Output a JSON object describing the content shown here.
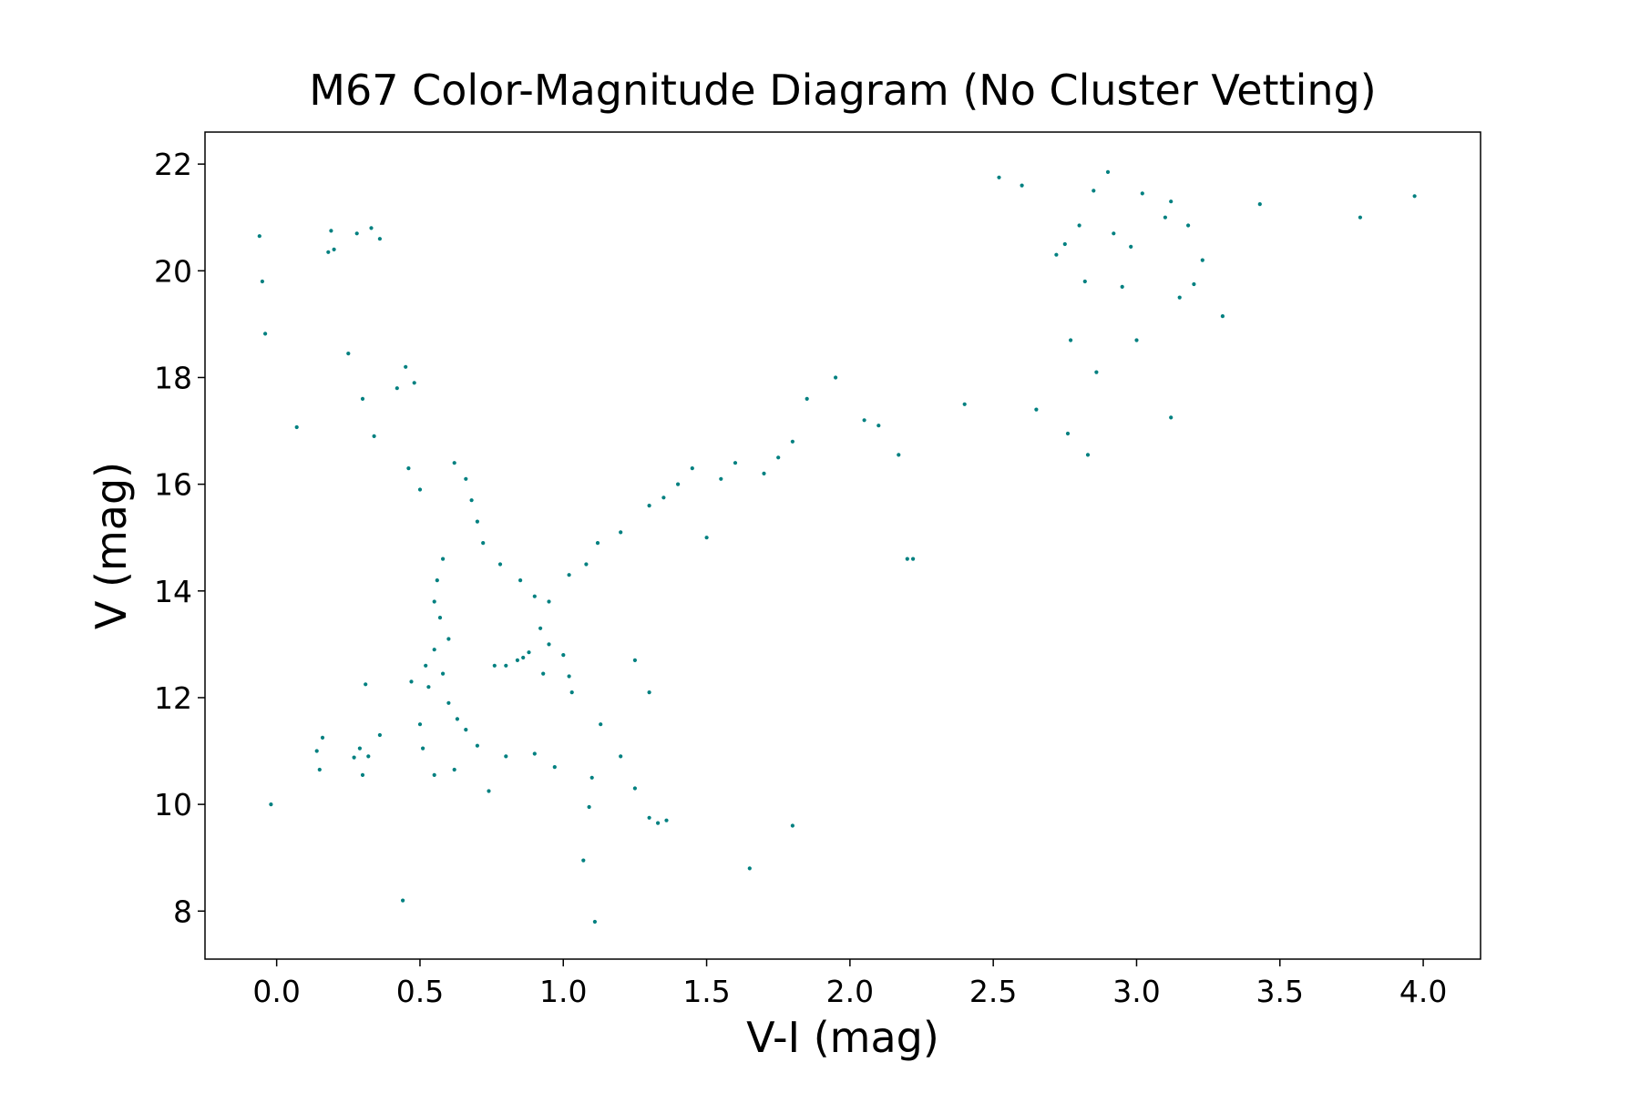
{
  "chart_data": {
    "type": "scatter",
    "title": "M67 Color-Magnitude Diagram (No Cluster Vetting)",
    "xlabel": "V-I (mag)",
    "ylabel": "V (mag)",
    "xlim": [
      -0.25,
      4.2
    ],
    "ylim": [
      7.1,
      22.6
    ],
    "xticks": [
      0.0,
      0.5,
      1.0,
      1.5,
      2.0,
      2.5,
      3.0,
      3.5,
      4.0
    ],
    "xtick_labels": [
      "0.0",
      "0.5",
      "1.0",
      "1.5",
      "2.0",
      "2.5",
      "3.0",
      "3.5",
      "4.0"
    ],
    "yticks": [
      8,
      10,
      12,
      14,
      16,
      18,
      20,
      22
    ],
    "ytick_labels": [
      "8",
      "10",
      "12",
      "14",
      "16",
      "18",
      "20",
      "22"
    ],
    "grid": false,
    "marker_color": "#008080",
    "series": [
      {
        "points": [
          [
            -0.06,
            20.65
          ],
          [
            -0.05,
            19.8
          ],
          [
            -0.04,
            18.82
          ],
          [
            -0.02,
            10.0
          ],
          [
            0.07,
            17.07
          ],
          [
            0.14,
            11.0
          ],
          [
            0.15,
            10.65
          ],
          [
            0.16,
            11.25
          ],
          [
            0.18,
            20.35
          ],
          [
            0.19,
            20.75
          ],
          [
            0.2,
            20.4
          ],
          [
            0.25,
            18.45
          ],
          [
            0.27,
            10.88
          ],
          [
            0.28,
            20.7
          ],
          [
            0.29,
            11.05
          ],
          [
            0.3,
            10.55
          ],
          [
            0.3,
            17.6
          ],
          [
            0.31,
            12.25
          ],
          [
            0.32,
            10.9
          ],
          [
            0.33,
            20.8
          ],
          [
            0.34,
            16.9
          ],
          [
            0.36,
            11.3
          ],
          [
            0.36,
            20.6
          ],
          [
            0.42,
            17.8
          ],
          [
            0.44,
            8.2
          ],
          [
            0.45,
            18.2
          ],
          [
            0.46,
            16.3
          ],
          [
            0.47,
            12.3
          ],
          [
            0.48,
            17.9
          ],
          [
            0.5,
            11.5
          ],
          [
            0.5,
            15.9
          ],
          [
            0.51,
            11.05
          ],
          [
            0.55,
            10.55
          ],
          [
            0.58,
            12.45
          ],
          [
            0.62,
            10.65
          ],
          [
            0.74,
            10.25
          ],
          [
            0.8,
            10.9
          ],
          [
            0.84,
            12.7
          ],
          [
            0.9,
            10.95
          ],
          [
            0.97,
            10.7
          ],
          [
            1.07,
            8.95
          ],
          [
            1.09,
            9.95
          ],
          [
            1.1,
            10.5
          ],
          [
            1.11,
            7.8
          ],
          [
            1.13,
            11.5
          ],
          [
            1.2,
            10.9
          ],
          [
            1.25,
            10.3
          ],
          [
            1.3,
            9.75
          ],
          [
            1.33,
            9.65
          ],
          [
            1.36,
            9.7
          ],
          [
            1.65,
            8.8
          ],
          [
            1.8,
            9.6
          ],
          [
            1.5,
            15.0
          ],
          [
            1.3,
            12.1
          ],
          [
            1.25,
            12.7
          ],
          [
            2.2,
            14.6
          ],
          [
            2.22,
            14.6
          ],
          [
            2.17,
            16.55
          ],
          [
            2.4,
            17.5
          ],
          [
            2.65,
            17.4
          ],
          [
            2.76,
            16.95
          ],
          [
            2.83,
            16.55
          ],
          [
            2.86,
            18.1
          ],
          [
            3.12,
            17.25
          ],
          [
            2.75,
            20.5
          ],
          [
            2.8,
            20.85
          ],
          [
            2.85,
            21.5
          ],
          [
            2.9,
            21.85
          ],
          [
            2.92,
            20.7
          ],
          [
            2.98,
            20.45
          ],
          [
            3.02,
            21.45
          ],
          [
            3.1,
            21.0
          ],
          [
            3.12,
            21.3
          ],
          [
            3.18,
            20.85
          ],
          [
            3.15,
            19.5
          ],
          [
            3.2,
            19.75
          ],
          [
            3.23,
            20.2
          ],
          [
            3.3,
            19.15
          ],
          [
            3.0,
            18.7
          ],
          [
            2.77,
            18.7
          ],
          [
            3.43,
            21.25
          ],
          [
            3.78,
            21.0
          ],
          [
            3.97,
            21.4
          ],
          [
            2.52,
            21.75
          ],
          [
            2.6,
            21.6
          ],
          [
            2.72,
            20.3
          ],
          [
            2.82,
            19.8
          ],
          [
            2.95,
            19.7
          ],
          [
            2.1,
            17.1
          ],
          [
            2.05,
            17.2
          ],
          [
            1.95,
            18.0
          ],
          [
            1.85,
            17.6
          ],
          [
            1.75,
            16.5
          ],
          [
            1.8,
            16.8
          ],
          [
            1.7,
            16.2
          ],
          [
            1.6,
            16.4
          ],
          [
            1.55,
            16.1
          ],
          [
            1.45,
            16.3
          ],
          [
            1.4,
            16.0
          ],
          [
            1.35,
            15.75
          ],
          [
            1.3,
            15.6
          ],
          [
            1.2,
            15.1
          ],
          [
            1.12,
            14.9
          ],
          [
            1.08,
            14.5
          ],
          [
            1.02,
            14.3
          ],
          [
            0.95,
            13.8
          ],
          [
            0.92,
            13.3
          ],
          [
            0.95,
            13.0
          ],
          [
            1.0,
            12.8
          ],
          [
            1.02,
            12.4
          ],
          [
            1.03,
            12.1
          ],
          [
            0.9,
            13.9
          ],
          [
            0.85,
            14.2
          ],
          [
            0.78,
            14.5
          ],
          [
            0.72,
            14.9
          ],
          [
            0.7,
            15.3
          ],
          [
            0.68,
            15.7
          ],
          [
            0.66,
            16.1
          ],
          [
            0.62,
            16.4
          ],
          [
            0.58,
            14.6
          ],
          [
            0.56,
            14.2
          ],
          [
            0.55,
            13.8
          ],
          [
            0.57,
            13.5
          ],
          [
            0.6,
            13.1
          ],
          [
            0.55,
            12.9
          ],
          [
            0.52,
            12.6
          ],
          [
            0.53,
            12.2
          ],
          [
            0.6,
            11.9
          ],
          [
            0.63,
            11.6
          ],
          [
            0.66,
            11.4
          ],
          [
            0.7,
            11.1
          ],
          [
            0.76,
            12.6
          ],
          [
            0.8,
            12.6
          ],
          [
            0.86,
            12.75
          ],
          [
            0.88,
            12.85
          ],
          [
            0.93,
            12.45
          ]
        ]
      }
    ]
  }
}
